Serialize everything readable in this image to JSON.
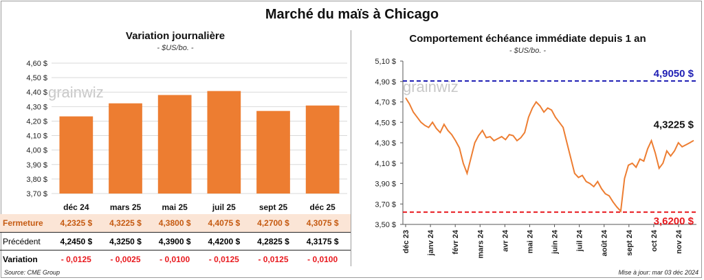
{
  "main_title": "Marché du maïs à Chicago",
  "left": {
    "title": "Variation journalière",
    "subtitle": "- $US/bo. -",
    "watermark": "grainwiz",
    "table": {
      "rows": [
        {
          "label": "Fermeture",
          "values": [
            "4,2325 $",
            "4,3225 $",
            "4,3800 $",
            "4,4075 $",
            "4,2700 $",
            "4,3075 $"
          ]
        },
        {
          "label": "Précédent",
          "values": [
            "4,2450 $",
            "4,3250 $",
            "4,3900 $",
            "4,4200 $",
            "4,2825 $",
            "4,3175 $"
          ]
        },
        {
          "label": "Variation",
          "values": [
            "- 0,0125",
            "- 0,0025",
            "- 0,0100",
            "- 0,0125",
            "- 0,0125",
            "- 0,0100"
          ]
        }
      ]
    }
  },
  "right": {
    "title": "Comportement  échéance immédiate depuis 1 an",
    "subtitle": "- $US/bo. -",
    "watermark": "grainwiz"
  },
  "footer": {
    "source": "Source: CME Group",
    "updated": "Mise à jour: mar 03 déc 2024"
  },
  "colors": {
    "bar": "#ED7D31",
    "line": "#ED7D31",
    "high_line": "#1F1FB4",
    "low_line": "#E8191E",
    "negative_text": "#E8191E",
    "fermeture_bg": "#FBE5D6"
  },
  "chart_data": [
    {
      "type": "bar",
      "categories": [
        "déc 24",
        "mars 25",
        "mai 25",
        "juil 25",
        "sept 25",
        "déc 25"
      ],
      "values": [
        4.2325,
        4.3225,
        4.38,
        4.4075,
        4.27,
        4.3075
      ],
      "ylim": [
        3.7,
        4.6
      ],
      "yticks": [
        "3,70 $",
        "3,80 $",
        "3,90 $",
        "4,00 $",
        "4,10 $",
        "4,20 $",
        "4,30 $",
        "4,40 $",
        "4,50 $",
        "4,60 $"
      ],
      "grid": true
    },
    {
      "type": "line",
      "ylim": [
        3.5,
        5.1
      ],
      "yticks": [
        "3,50 $",
        "3,70 $",
        "3,90 $",
        "4,10 $",
        "4,30 $",
        "4,50 $",
        "4,70 $",
        "4,90 $",
        "5,10 $"
      ],
      "xticks": [
        "déc 23",
        "janv 24",
        "févr 24",
        "mars 24",
        "avr 24",
        "mai 24",
        "juin 24",
        "juil 24",
        "août 24",
        "sept 24",
        "oct 24",
        "nov 24"
      ],
      "y": [
        4.74,
        4.68,
        4.6,
        4.55,
        4.5,
        4.47,
        4.45,
        4.5,
        4.44,
        4.4,
        4.48,
        4.42,
        4.38,
        4.32,
        4.25,
        4.1,
        4.0,
        4.15,
        4.3,
        4.37,
        4.42,
        4.35,
        4.36,
        4.32,
        4.34,
        4.36,
        4.33,
        4.38,
        4.37,
        4.32,
        4.35,
        4.4,
        4.55,
        4.64,
        4.7,
        4.66,
        4.6,
        4.64,
        4.62,
        4.55,
        4.5,
        4.45,
        4.3,
        4.15,
        4.0,
        3.96,
        3.98,
        3.92,
        3.9,
        3.87,
        3.92,
        3.85,
        3.8,
        3.78,
        3.72,
        3.67,
        3.63,
        3.95,
        4.08,
        4.1,
        4.06,
        4.14,
        4.12,
        4.24,
        4.32,
        4.2,
        4.05,
        4.1,
        4.22,
        4.17,
        4.22,
        4.3,
        4.26,
        4.28,
        4.3,
        4.3225
      ],
      "series": [
        {
          "values_ref": "y"
        }
      ],
      "reference_lines": [
        {
          "label": "4,9050 $",
          "value": 4.905
        },
        {
          "label": "3,6200 $",
          "value": 3.62
        }
      ],
      "last_label": "4,3225 $",
      "grid": false
    }
  ]
}
